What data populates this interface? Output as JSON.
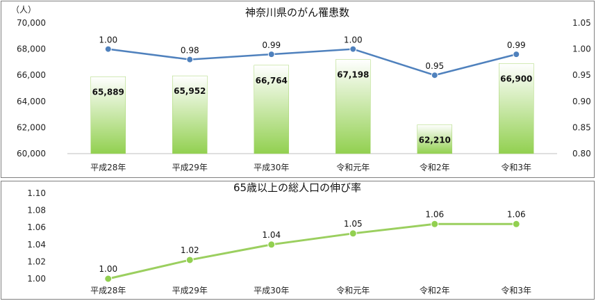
{
  "chart_data": [
    {
      "type": "bar+line",
      "title": "神奈川県のがん罹患数",
      "unit_label": "（人）",
      "categories": [
        "平成28年",
        "平成29年",
        "平成30年",
        "令和元年",
        "令和2年",
        "令和3年"
      ],
      "bar_series": {
        "values": [
          65889,
          65952,
          66764,
          67198,
          62210,
          66900
        ],
        "labels": [
          "65,889",
          "65,952",
          "66,764",
          "67,198",
          "62,210",
          "66,900"
        ]
      },
      "line_series": {
        "values": [
          1.0,
          0.98,
          0.99,
          1.0,
          0.95,
          0.99
        ],
        "labels": [
          "1.00",
          "0.98",
          "0.99",
          "1.00",
          "0.95",
          "0.99"
        ]
      },
      "y_left": {
        "ylim": [
          60000,
          70000
        ],
        "ticks": [
          60000,
          62000,
          64000,
          66000,
          68000,
          70000
        ],
        "tick_labels": [
          "60,000",
          "62,000",
          "64,000",
          "66,000",
          "68,000",
          "70,000"
        ]
      },
      "y_right": {
        "ylim": [
          0.8,
          1.05
        ],
        "ticks": [
          0.8,
          0.85,
          0.9,
          0.95,
          1.0,
          1.05
        ],
        "tick_labels": [
          "0.80",
          "0.85",
          "0.90",
          "0.95",
          "1.00",
          "1.05"
        ]
      },
      "colors": {
        "bar_top": "#ffffff",
        "bar_bottom": "#92d050",
        "line": "#4f81bd",
        "marker": "#4f81bd"
      }
    },
    {
      "type": "line",
      "title": "65歳以上の総人口の伸び率",
      "categories": [
        "平成28年",
        "平成29年",
        "平成30年",
        "令和元年",
        "令和2年",
        "令和3年"
      ],
      "series": [
        {
          "values": [
            1.0,
            1.022,
            1.04,
            1.053,
            1.064,
            1.064
          ],
          "labels": [
            "1.00",
            "1.02",
            "1.04",
            "1.05",
            "1.06",
            "1.06"
          ]
        }
      ],
      "y_axis": {
        "ylim": [
          1.0,
          1.1
        ],
        "ticks": [
          1.0,
          1.02,
          1.04,
          1.06,
          1.08,
          1.1
        ],
        "tick_labels": [
          "1.00",
          "1.02",
          "1.04",
          "1.06",
          "1.08",
          "1.10"
        ]
      },
      "colors": {
        "line": "#9bcf5f",
        "marker": "#92d050"
      }
    }
  ]
}
